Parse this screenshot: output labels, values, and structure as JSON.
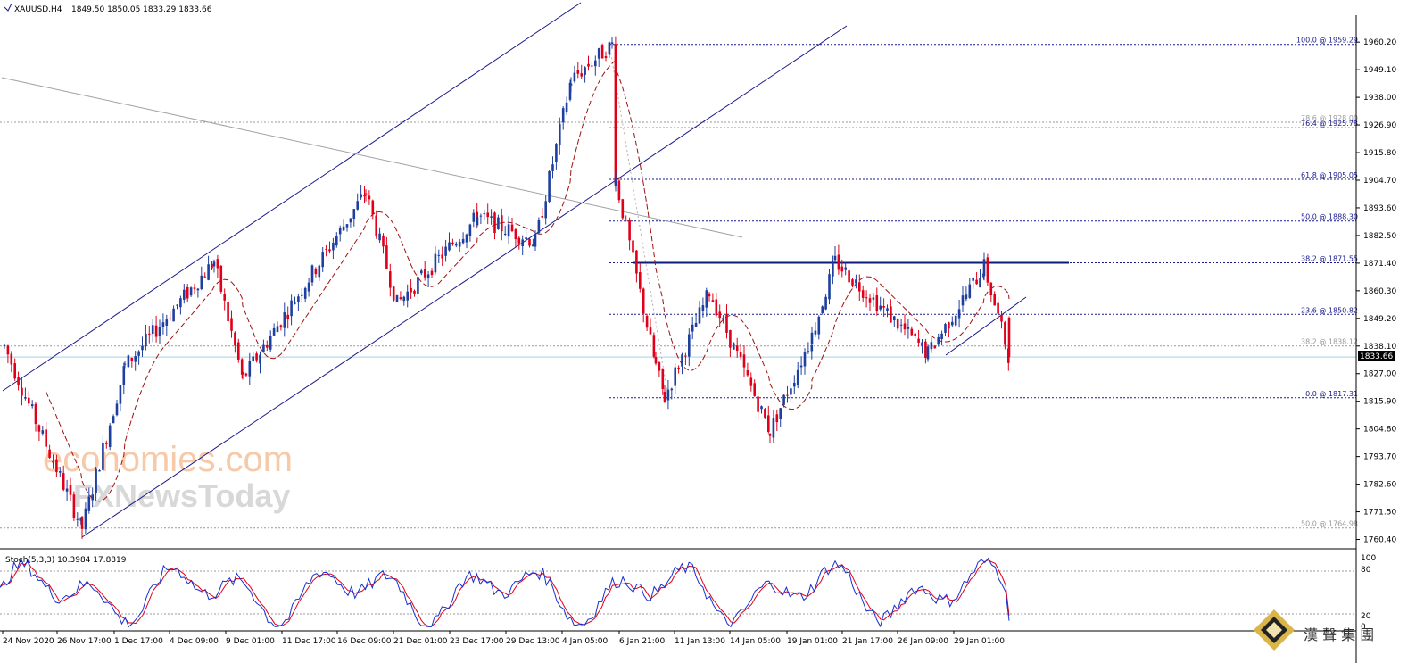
{
  "header": {
    "symbol": "XAUUSD,H4",
    "ohlc": "1849.50 1850.05 1833.29 1833.66"
  },
  "stoch": {
    "label": "Stoch(5,3,3) 10.3984 17.8819",
    "axis_labels": [
      "100",
      "80",
      "20",
      "0"
    ]
  },
  "price_axis": {
    "labels": [
      "1960.20",
      "1949.10",
      "1938.00",
      "1926.90",
      "1915.80",
      "1904.70",
      "1893.60",
      "1882.50",
      "1871.40",
      "1860.30",
      "1849.20",
      "1838.10",
      "1827.00",
      "1815.90",
      "1804.80",
      "1793.70",
      "1782.60",
      "1771.50",
      "1760.40"
    ],
    "current_price": "1833.66"
  },
  "time_axis": {
    "labels": [
      "24 Nov 2020",
      "26 Nov 17:00",
      "1 Dec 17:00",
      "4 Dec 09:00",
      "9 Dec 01:00",
      "11 Dec 17:00",
      "16 Dec 09:00",
      "21 Dec 01:00",
      "23 Dec 17:00",
      "29 Dec 13:00",
      "4 Jan 05:00",
      "6 Jan 21:00",
      "11 Jan 13:00",
      "14 Jan 05:00",
      "19 Jan 01:00",
      "21 Jan 17:00",
      "26 Jan 09:00",
      "29 Jan 01:00"
    ]
  },
  "fib_levels": [
    {
      "label": "100.0 @ 1959.29",
      "color": "#1a1a8c"
    },
    {
      "label": "78.6 @ 1928.00",
      "color": "#999999"
    },
    {
      "label": "76.4 @ 1925.78",
      "color": "#1a1a8c"
    },
    {
      "label": "61.8 @ 1905.05",
      "color": "#1a1a8c"
    },
    {
      "label": "50.0 @ 1888.30",
      "color": "#1a1a8c"
    },
    {
      "label": "38.2 @ 1871.55",
      "color": "#1a1a8c"
    },
    {
      "label": "23.6 @ 1850.82",
      "color": "#1a1a8c"
    },
    {
      "label": "38.2 @ 1838.12",
      "color": "#999999"
    },
    {
      "label": "0.0 @ 1817.31",
      "color": "#1a1a8c"
    },
    {
      "label": "50.0 @ 1764.98",
      "color": "#999999"
    }
  ],
  "watermark": {
    "line1": "economies.com",
    "line2": "FXNewsToday"
  },
  "brand": {
    "text": "漢 聲 集 團"
  },
  "colors": {
    "bull": "#1e3fa0",
    "bear": "#e0001a",
    "ma": "#a01010",
    "trendline": "#1a1a8c",
    "stoch_main": "#1530d0",
    "stoch_signal": "#e0001a"
  },
  "chart_data": {
    "type": "candlestick",
    "symbol": "XAUUSD",
    "timeframe": "H4",
    "y_range": [
      1757.0,
      1966.0
    ],
    "current_price": 1833.66,
    "open": 1849.5,
    "high": 1850.05,
    "low": 1833.29,
    "close": 1833.66,
    "swing_points": [
      {
        "time": "24 Nov 2020",
        "price": 1838
      },
      {
        "time": "25 Nov 2020",
        "price": 1808
      },
      {
        "time": "30 Nov 2020",
        "price": 1765
      },
      {
        "time": "2 Dec 2020",
        "price": 1830
      },
      {
        "time": "7 Dec 2020",
        "price": 1872
      },
      {
        "time": "9 Dec 2020",
        "price": 1825
      },
      {
        "time": "16 Dec 2020",
        "price": 1900
      },
      {
        "time": "21 Dec 2020",
        "price": 1855
      },
      {
        "time": "23 Dec 2020",
        "price": 1890
      },
      {
        "time": "30 Dec 2020",
        "price": 1880
      },
      {
        "time": "4 Jan 2021",
        "price": 1945
      },
      {
        "time": "6 Jan 2021",
        "price": 1959.29
      },
      {
        "time": "7 Jan 2021",
        "price": 1905
      },
      {
        "time": "8 Jan 2021",
        "price": 1830
      },
      {
        "time": "11 Jan 2021",
        "price": 1817.31
      },
      {
        "time": "12 Jan 2021",
        "price": 1860
      },
      {
        "time": "15 Jan 2021",
        "price": 1804
      },
      {
        "time": "19 Jan 2021",
        "price": 1842
      },
      {
        "time": "21 Jan 2021",
        "price": 1872
      },
      {
        "time": "26 Jan 2021",
        "price": 1835
      },
      {
        "time": "28 Jan 2021",
        "price": 1870
      },
      {
        "time": "1 Feb 2021",
        "price": 1833.66
      }
    ],
    "resistance": 1871.55,
    "stochastic": {
      "params": "5,3,3",
      "main": 10.3984,
      "signal": 17.8819,
      "levels": [
        80,
        20
      ]
    }
  }
}
